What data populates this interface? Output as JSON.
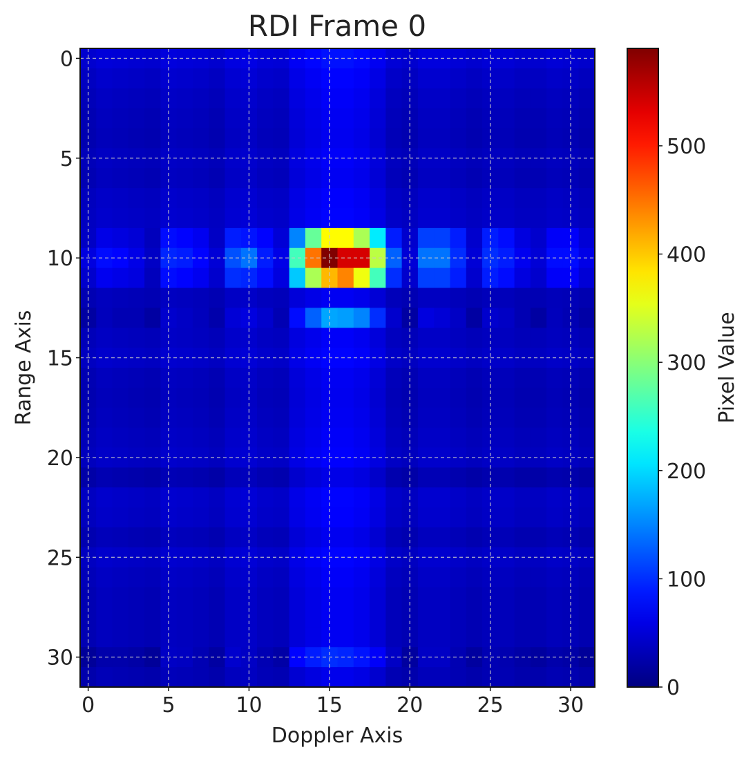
{
  "chart_data": {
    "type": "heatmap",
    "title": "RDI Frame 0",
    "xlabel": "Doppler Axis",
    "ylabel": "Range Axis",
    "colorbar_label": "Pixel Value",
    "colormap": "jet",
    "grid": true,
    "x_ticks": [
      0,
      5,
      10,
      15,
      20,
      25,
      30
    ],
    "y_ticks": [
      0,
      5,
      10,
      15,
      20,
      25,
      30
    ],
    "colorbar_ticks": [
      0,
      100,
      200,
      300,
      400,
      500
    ],
    "vmin": 0,
    "vmax": 590,
    "n_rows": 32,
    "n_cols": 32,
    "base_row_levels": [
      38,
      30,
      25,
      22,
      20,
      25,
      22,
      28,
      30,
      0,
      0,
      0,
      22,
      32,
      25,
      30,
      22,
      20,
      22,
      25,
      28,
      15,
      30,
      28,
      20,
      30,
      25,
      22,
      22,
      22,
      40,
      18
    ],
    "base_col_levels": [
      8,
      14,
      12,
      10,
      8,
      16,
      14,
      12,
      8,
      18,
      20,
      14,
      12,
      30,
      38,
      45,
      45,
      40,
      28,
      12,
      8,
      16,
      16,
      12,
      8,
      12,
      12,
      8,
      8,
      12,
      10,
      6
    ],
    "rows_overrides": {
      "9": [
        40,
        60,
        55,
        50,
        35,
        80,
        75,
        65,
        40,
        90,
        85,
        75,
        50,
        150,
        280,
        370,
        370,
        320,
        210,
        90,
        45,
        110,
        110,
        90,
        45,
        90,
        80,
        55,
        45,
        70,
        70,
        50
      ],
      "10": [
        55,
        80,
        75,
        60,
        40,
        95,
        90,
        75,
        50,
        120,
        140,
        90,
        60,
        260,
        450,
        590,
        540,
        540,
        330,
        130,
        50,
        140,
        140,
        100,
        50,
        100,
        90,
        65,
        50,
        80,
        80,
        60
      ],
      "11": [
        45,
        65,
        60,
        55,
        35,
        80,
        75,
        65,
        45,
        100,
        95,
        80,
        55,
        190,
        320,
        410,
        440,
        360,
        260,
        100,
        45,
        110,
        110,
        90,
        45,
        90,
        80,
        55,
        45,
        70,
        70,
        50
      ],
      "13": [
        20,
        35,
        30,
        30,
        20,
        45,
        40,
        35,
        25,
        50,
        55,
        45,
        30,
        80,
        130,
        170,
        165,
        150,
        100,
        45,
        20,
        55,
        50,
        40,
        20,
        45,
        40,
        30,
        20,
        35,
        30,
        22
      ],
      "30": [
        15,
        25,
        25,
        22,
        15,
        40,
        38,
        30,
        20,
        45,
        40,
        30,
        22,
        75,
        90,
        100,
        95,
        85,
        70,
        40,
        18,
        40,
        40,
        30,
        18,
        30,
        28,
        22,
        18,
        25,
        22,
        15
      ]
    }
  }
}
